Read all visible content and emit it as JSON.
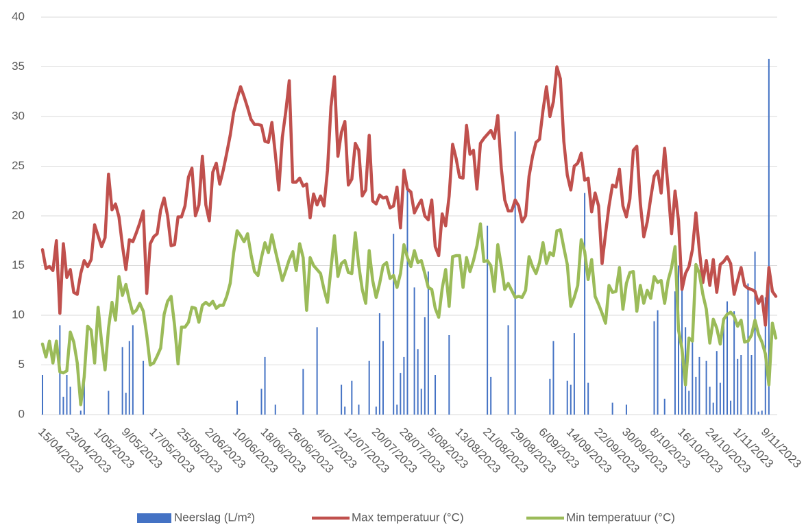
{
  "chart_data": {
    "type": "combo",
    "categories": [
      "15/04/2023",
      null,
      null,
      null,
      null,
      null,
      null,
      null,
      "23/04/2023",
      null,
      null,
      null,
      null,
      null,
      null,
      null,
      "1/05/2023",
      null,
      null,
      null,
      null,
      null,
      null,
      null,
      "9/05/2023",
      null,
      null,
      null,
      null,
      null,
      null,
      null,
      "17/05/2023",
      null,
      null,
      null,
      null,
      null,
      null,
      null,
      "25/05/2023",
      null,
      null,
      null,
      null,
      null,
      null,
      null,
      "2/06/2023",
      null,
      null,
      null,
      null,
      null,
      null,
      null,
      "10/06/2023",
      null,
      null,
      null,
      null,
      null,
      null,
      null,
      "18/06/2023",
      null,
      null,
      null,
      null,
      null,
      null,
      null,
      "26/06/2023",
      null,
      null,
      null,
      null,
      null,
      null,
      null,
      "4/07/2023",
      null,
      null,
      null,
      null,
      null,
      null,
      null,
      "12/07/2023",
      null,
      null,
      null,
      null,
      null,
      null,
      null,
      "20/07/2023",
      null,
      null,
      null,
      null,
      null,
      null,
      null,
      "28/07/2023",
      null,
      null,
      null,
      null,
      null,
      null,
      null,
      "5/08/2023",
      null,
      null,
      null,
      null,
      null,
      null,
      null,
      "13/08/2023",
      null,
      null,
      null,
      null,
      null,
      null,
      null,
      "21/08/2023",
      null,
      null,
      null,
      null,
      null,
      null,
      null,
      "29/08/2023",
      null,
      null,
      null,
      null,
      null,
      null,
      null,
      "6/09/2023",
      null,
      null,
      null,
      null,
      null,
      null,
      null,
      "14/09/2023",
      null,
      null,
      null,
      null,
      null,
      null,
      null,
      "22/09/2023",
      null,
      null,
      null,
      null,
      null,
      null,
      null,
      "30/09/2023",
      null,
      null,
      null,
      null,
      null,
      null,
      null,
      "8/10/2023",
      null,
      null,
      null,
      null,
      null,
      null,
      null,
      "16/10/2023",
      null,
      null,
      null,
      null,
      null,
      null,
      null,
      "24/10/2023",
      null,
      null,
      null,
      null,
      null,
      null,
      null,
      "1/11/2023",
      null,
      null,
      null,
      null,
      null,
      null,
      null,
      "9/11/2023",
      null,
      null,
      null
    ],
    "series": [
      {
        "name": "Neerslag (L/m²)",
        "type": "bar",
        "color": "#4472c4",
        "values": [
          4.0,
          0,
          0,
          0,
          0,
          9.0,
          1.8,
          4.0,
          2.8,
          0,
          0,
          0.4,
          3.8,
          0,
          0,
          0,
          0,
          0,
          0,
          2.4,
          0,
          0,
          0,
          6.8,
          2.2,
          7.4,
          9.0,
          0,
          0,
          5.4,
          0,
          0,
          0,
          0,
          0,
          0,
          0,
          0,
          0,
          0,
          0,
          0,
          0,
          0,
          0,
          0,
          0,
          0,
          0,
          0,
          0,
          0,
          0,
          0,
          0,
          0,
          1.4,
          0,
          0,
          0,
          0,
          0,
          0,
          2.6,
          5.8,
          0,
          0,
          1.0,
          0,
          0,
          0,
          0,
          0,
          0,
          0,
          4.6,
          0,
          0,
          0,
          8.8,
          0,
          0,
          0,
          0,
          0,
          0,
          3.0,
          0.8,
          0,
          3.4,
          0,
          1.0,
          0,
          0,
          5.4,
          0,
          0.8,
          10.2,
          7.4,
          0,
          0,
          18.2,
          1.0,
          4.2,
          5.8,
          23.0,
          0,
          12.8,
          6.6,
          2.6,
          9.8,
          14.4,
          0,
          4.0,
          0,
          0,
          0,
          8.0,
          0,
          0,
          0,
          0,
          0,
          0,
          0,
          0,
          0,
          0,
          19.0,
          3.8,
          0,
          0,
          0,
          0,
          9.0,
          0,
          28.5,
          0,
          0,
          0,
          0,
          0,
          0,
          0,
          0,
          0,
          3.6,
          7.4,
          0,
          0,
          0,
          3.4,
          3.0,
          8.2,
          0,
          0,
          22.3,
          3.2,
          0,
          0,
          0,
          0,
          0,
          0,
          1.2,
          0,
          0,
          0,
          1.0,
          0,
          0,
          0,
          0,
          0,
          0,
          0,
          9.4,
          10.5,
          0,
          1.6,
          0,
          0,
          12.4,
          15.0,
          13.0,
          8.8,
          2.4,
          7.6,
          3.8,
          5.8,
          0,
          5.4,
          2.8,
          1.2,
          6.4,
          3.2,
          9.2,
          11.4,
          1.4,
          10.4,
          5.6,
          6.0,
          0,
          13.2,
          6.0,
          16.4,
          0.3,
          0.4,
          11.8,
          35.8,
          0,
          0
        ]
      },
      {
        "name": "Max temperatuur (°C)",
        "type": "line",
        "color": "#c0504d",
        "values": [
          16.6,
          14.7,
          14.9,
          14.5,
          17.5,
          10.2,
          17.2,
          13.8,
          14.6,
          12.3,
          12.1,
          14.2,
          15.5,
          14.9,
          15.6,
          19.1,
          18.0,
          16.9,
          17.8,
          24.2,
          20.6,
          21.2,
          19.9,
          17.0,
          14.6,
          17.6,
          17.4,
          18.3,
          19.3,
          20.5,
          12.2,
          17.2,
          17.9,
          18.2,
          20.6,
          21.8,
          20.0,
          17.0,
          17.1,
          19.9,
          19.9,
          21.0,
          23.9,
          24.8,
          20.0,
          21.1,
          26.0,
          21.1,
          19.5,
          24.4,
          25.3,
          23.2,
          24.6,
          26.3,
          28.1,
          30.4,
          31.8,
          33.0,
          32.0,
          30.9,
          29.7,
          29.2,
          29.2,
          29.1,
          27.5,
          27.4,
          29.4,
          26.2,
          22.6,
          27.9,
          30.5,
          33.6,
          23.4,
          23.4,
          23.8,
          23.0,
          23.2,
          19.8,
          22.2,
          21.1,
          22.0,
          21.0,
          24.6,
          31.0,
          34.0,
          26.0,
          28.4,
          29.5,
          23.1,
          23.7,
          27.3,
          26.6,
          22.0,
          22.6,
          28.1,
          21.5,
          21.2,
          22.1,
          21.8,
          21.9,
          20.8,
          21.0,
          22.9,
          18.8,
          24.6,
          22.7,
          22.4,
          20.3,
          21.0,
          21.6,
          20.0,
          19.6,
          21.6,
          16.9,
          16.0,
          20.2,
          19.0,
          22.0,
          27.2,
          25.8,
          23.9,
          23.8,
          29.1,
          26.2,
          26.6,
          22.7,
          27.3,
          27.8,
          28.2,
          28.6,
          27.8,
          30.1,
          24.8,
          21.6,
          20.5,
          20.5,
          21.6,
          21.0,
          19.4,
          20.0,
          24.0,
          26.0,
          27.4,
          27.7,
          30.6,
          33.0,
          30.0,
          31.5,
          35.0,
          33.8,
          27.5,
          24.1,
          22.6,
          25.0,
          25.3,
          26.3,
          23.6,
          23.8,
          20.4,
          22.3,
          21.0,
          15.2,
          18.2,
          21.0,
          23.1,
          22.9,
          24.7,
          21.0,
          19.9,
          21.7,
          26.6,
          27.0,
          21.3,
          17.9,
          19.4,
          21.8,
          24.0,
          24.5,
          22.3,
          26.8,
          22.8,
          18.2,
          22.5,
          19.5,
          12.6,
          14.2,
          14.9,
          16.6,
          20.3,
          16.5,
          13.3,
          15.5,
          13.0,
          15.6,
          12.3,
          15.1,
          15.4,
          15.9,
          15.2,
          12.1,
          13.5,
          14.8,
          13.0,
          12.7,
          12.6,
          12.4,
          11.2,
          11.9,
          9.0,
          14.8,
          12.4,
          11.9
        ]
      },
      {
        "name": "Min temperatuur (°C)",
        "type": "line",
        "color": "#9bbb59",
        "values": [
          7.1,
          5.8,
          7.4,
          5.2,
          7.4,
          4.3,
          4.2,
          4.4,
          8.3,
          7.3,
          5.2,
          1.0,
          3.8,
          8.9,
          8.5,
          5.2,
          10.8,
          7.3,
          4.5,
          8.7,
          11.3,
          9.5,
          13.9,
          12.0,
          13.1,
          11.5,
          10.2,
          10.5,
          11.2,
          10.4,
          8.0,
          5.0,
          5.2,
          5.9,
          6.7,
          10.1,
          11.4,
          11.9,
          9.0,
          5.1,
          8.8,
          8.8,
          9.3,
          10.8,
          10.7,
          9.3,
          11.0,
          11.3,
          11.0,
          11.4,
          10.7,
          11.0,
          11.0,
          11.9,
          13.2,
          16.3,
          18.5,
          18.0,
          17.4,
          18.2,
          16.1,
          14.4,
          14.0,
          15.8,
          17.3,
          16.3,
          18.1,
          16.5,
          15.0,
          13.5,
          14.5,
          15.6,
          16.4,
          14.5,
          17.2,
          15.8,
          10.5,
          15.8,
          15.0,
          14.6,
          14.2,
          12.6,
          11.3,
          14.7,
          18.0,
          13.9,
          15.2,
          15.5,
          14.3,
          14.2,
          18.3,
          15.0,
          12.6,
          11.2,
          16.5,
          13.5,
          11.8,
          13.2,
          15.0,
          15.3,
          13.7,
          14.0,
          12.8,
          14.2,
          17.1,
          15.8,
          14.9,
          16.5,
          15.3,
          15.5,
          14.2,
          12.8,
          12.6,
          10.7,
          9.8,
          12.7,
          14.6,
          10.9,
          15.9,
          16.0,
          16.0,
          12.8,
          15.8,
          14.4,
          15.5,
          17.0,
          19.2,
          15.4,
          15.5,
          15.0,
          12.4,
          17.1,
          15.0,
          12.6,
          13.2,
          12.5,
          11.8,
          11.9,
          11.8,
          12.5,
          15.9,
          14.9,
          14.2,
          15.3,
          17.3,
          15.2,
          16.3,
          16.0,
          18.5,
          18.6,
          16.8,
          15.1,
          10.9,
          11.8,
          13.0,
          17.6,
          16.4,
          13.6,
          15.6,
          11.9,
          11.1,
          10.2,
          9.2,
          13.0,
          12.3,
          12.4,
          14.8,
          10.6,
          13.2,
          14.3,
          14.4,
          10.4,
          13.0,
          11.2,
          12.5,
          11.7,
          13.9,
          13.3,
          13.5,
          11.2,
          13.5,
          14.8,
          16.9,
          8.5,
          6.6,
          3.0,
          7.7,
          7.4,
          15.1,
          14.2,
          12.1,
          10.6,
          7.2,
          9.6,
          8.7,
          7.1,
          9.6,
          10.1,
          10.3,
          9.9,
          8.9,
          9.5,
          7.3,
          7.4,
          8.0,
          9.5,
          8.1,
          7.3,
          6.1,
          3.0,
          9.2,
          7.7
        ]
      }
    ],
    "ylim": [
      0,
      40
    ],
    "yticks": [
      0,
      5,
      10,
      15,
      20,
      25,
      30,
      35,
      40
    ],
    "grid": true,
    "legend": "bottom"
  }
}
